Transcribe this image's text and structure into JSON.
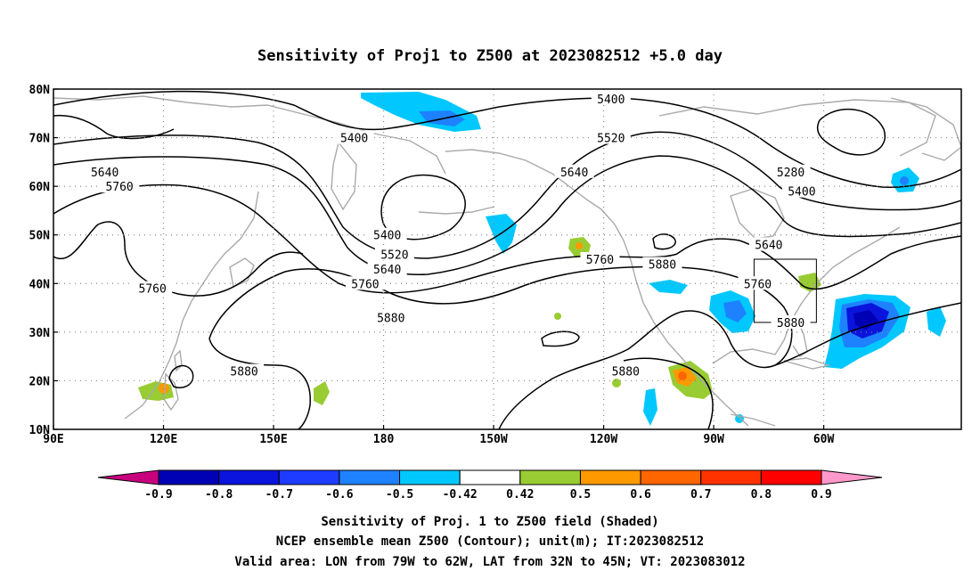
{
  "title": "Sensitivity of Proj1 to Z500 at 2023082512 +5.0 day",
  "map": {
    "lon_ticks": [
      "90E",
      "120E",
      "150E",
      "180",
      "150W",
      "120W",
      "90W",
      "60W"
    ],
    "lat_ticks": [
      "80N",
      "70N",
      "60N",
      "50N",
      "40N",
      "30N",
      "20N",
      "10N"
    ],
    "grid": "dotted",
    "contour_labels": [
      {
        "text": "5400",
        "lon": 172,
        "lat": 70
      },
      {
        "text": "5400",
        "lon": -118,
        "lat": 78
      },
      {
        "text": "5520",
        "lon": -118,
        "lat": 70
      },
      {
        "text": "5640",
        "lon": -128,
        "lat": 63
      },
      {
        "text": "5280",
        "lon": -69,
        "lat": 63
      },
      {
        "text": "5400",
        "lon": -66,
        "lat": 59
      },
      {
        "text": "5640",
        "lon": 104,
        "lat": 63
      },
      {
        "text": "5760",
        "lon": 108,
        "lat": 60
      },
      {
        "text": "5400",
        "lon": -179,
        "lat": 50
      },
      {
        "text": "5520",
        "lon": -177,
        "lat": 46
      },
      {
        "text": "5640",
        "lon": -179,
        "lat": 43
      },
      {
        "text": "5760",
        "lon": 175,
        "lat": 40
      },
      {
        "text": "5880",
        "lon": -178,
        "lat": 33
      },
      {
        "text": "5760",
        "lon": 117,
        "lat": 39
      },
      {
        "text": "5760",
        "lon": -121,
        "lat": 45
      },
      {
        "text": "5880",
        "lon": -104,
        "lat": 44
      },
      {
        "text": "5640",
        "lon": -75,
        "lat": 48
      },
      {
        "text": "5760",
        "lon": -78,
        "lat": 40
      },
      {
        "text": "5880",
        "lon": -69,
        "lat": 32
      },
      {
        "text": "5880",
        "lon": -114,
        "lat": 22
      },
      {
        "text": "5880",
        "lon": 142,
        "lat": 22
      }
    ],
    "valid_box": {
      "lon_min": -79,
      "lon_max": -62,
      "lat_min": 32,
      "lat_max": 45
    }
  },
  "colorbar": {
    "levels": [
      "-0.9",
      "-0.8",
      "-0.7",
      "-0.6",
      "-0.5",
      "-0.42",
      "0.42",
      "0.5",
      "0.6",
      "0.7",
      "0.8",
      "0.9"
    ],
    "colors": [
      "#c8007e",
      "#0000b4",
      "#0a14dc",
      "#1e3cff",
      "#1e82ff",
      "#00c8ff",
      "#ffffff",
      "#99cc33",
      "#ff9900",
      "#ff6600",
      "#ff3300",
      "#ff0000",
      "#ff99cc"
    ]
  },
  "footer": {
    "line1": "Sensitivity of Proj. 1 to Z500 field (Shaded)",
    "line2": "NCEP ensemble mean Z500 (Contour); unit(m); IT:2023082512",
    "line3": "Valid area: LON from 79W to 62W, LAT from 32N to 45N; VT: 2023083012"
  }
}
